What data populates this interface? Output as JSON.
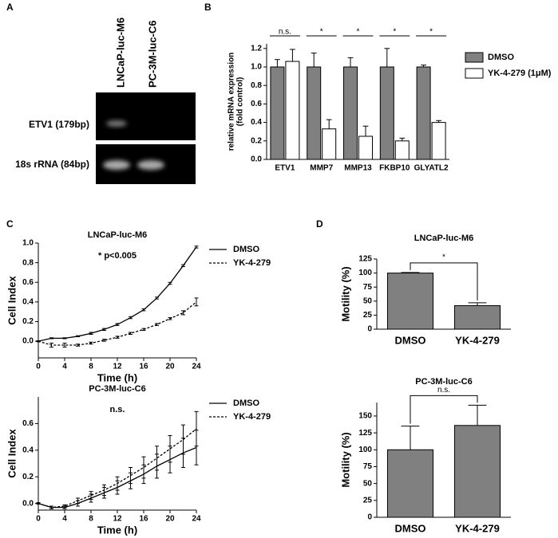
{
  "panel_labels": [
    "A",
    "B",
    "C",
    "D"
  ],
  "gel": {
    "lanes": [
      "LNCaP-luc-M6",
      "PC-3M-luc-C6"
    ],
    "rows": [
      "ETV1 (179bp)",
      "18s rRNA (84bp)"
    ]
  },
  "chart_data": [
    {
      "type": "bar",
      "ylabel": [
        "relative mRNA expression",
        "(fold control)"
      ],
      "categories": [
        "ETV1",
        "MMP7",
        "MMP13",
        "FKBP10",
        "GLYATL2"
      ],
      "significance": [
        "n.s.",
        "*",
        "*",
        "*",
        "*"
      ],
      "series": [
        {
          "name": "DMSO",
          "color": "#808080",
          "values": [
            1.0,
            1.0,
            1.0,
            1.0,
            1.0
          ],
          "errors": [
            0.08,
            0.15,
            0.1,
            0.2,
            0.02
          ]
        },
        {
          "name": "YK-4-279 (1μM)",
          "color": "#ffffff",
          "values": [
            1.06,
            0.33,
            0.25,
            0.2,
            0.4
          ],
          "errors": [
            0.13,
            0.1,
            0.11,
            0.03,
            0.02
          ]
        }
      ],
      "ylim": [
        0,
        1.25
      ],
      "yticks": [
        {
          "value": 0,
          "label": "0.0"
        },
        0.2,
        0.4,
        0.6,
        0.8,
        {
          "value": 1,
          "label": "1.0"
        },
        1.2
      ]
    },
    {
      "type": "line",
      "title": "LNCaP-luc-M6",
      "annotation": "* p<0.005",
      "xlabel": "Time (h)",
      "ylabel": "Cell Index",
      "x": [
        0,
        2,
        4,
        6,
        8,
        10,
        12,
        14,
        16,
        18,
        20,
        22,
        24
      ],
      "series": [
        {
          "name": "DMSO",
          "color": "#000000",
          "line_style": "solid",
          "values": [
            0.0,
            0.03,
            0.03,
            0.05,
            0.08,
            0.12,
            0.17,
            0.24,
            0.32,
            0.44,
            0.59,
            0.77,
            0.96
          ],
          "errors": [
            0.005,
            0.005,
            0.005,
            0.005,
            0.01,
            0.01,
            0.01,
            0.01,
            0.01,
            0.01,
            0.01,
            0.01,
            0.01
          ]
        },
        {
          "name": "YK-4-279",
          "color": "#000000",
          "line_style": "dashed",
          "values": [
            0.0,
            -0.04,
            -0.04,
            -0.04,
            -0.02,
            0.01,
            0.04,
            0.08,
            0.12,
            0.17,
            0.23,
            0.29,
            0.4
          ],
          "errors": [
            0.005,
            0.02,
            0.02,
            0.01,
            0.01,
            0.01,
            0.01,
            0.01,
            0.01,
            0.01,
            0.01,
            0.02,
            0.04
          ]
        }
      ],
      "xlim": [
        0,
        24
      ],
      "xticks": [
        0,
        4,
        8,
        12,
        16,
        20,
        24
      ],
      "ylim": [
        -0.17,
        1.0
      ],
      "yticks": [
        {
          "value": 0,
          "label": "0.0"
        },
        0.2,
        0.4,
        0.6,
        0.8,
        {
          "value": 1,
          "label": "1.0"
        }
      ]
    },
    {
      "type": "line",
      "title": "PC-3M-luc-C6",
      "annotation": "n.s.",
      "xlabel": "Time (h)",
      "ylabel": "Cell Index",
      "x": [
        0,
        2,
        4,
        6,
        8,
        10,
        12,
        14,
        16,
        18,
        20,
        22,
        24
      ],
      "series": [
        {
          "name": "DMSO",
          "color": "#000000",
          "line_style": "solid",
          "values": [
            0.0,
            -0.03,
            -0.03,
            0.0,
            0.04,
            0.08,
            0.12,
            0.17,
            0.22,
            0.28,
            0.33,
            0.38,
            0.42
          ],
          "errors": [
            0.005,
            0.01,
            0.01,
            0.02,
            0.03,
            0.04,
            0.05,
            0.06,
            0.07,
            0.09,
            0.1,
            0.11,
            0.13
          ]
        },
        {
          "name": "YK-4-279",
          "color": "#000000",
          "line_style": "dashed",
          "values": [
            0.0,
            -0.03,
            -0.02,
            0.02,
            0.06,
            0.1,
            0.15,
            0.21,
            0.27,
            0.34,
            0.41,
            0.48,
            0.56
          ],
          "errors": [
            0.005,
            0.01,
            0.01,
            0.02,
            0.03,
            0.04,
            0.05,
            0.06,
            0.08,
            0.09,
            0.1,
            0.11,
            0.13
          ]
        }
      ],
      "xlim": [
        0,
        24
      ],
      "xticks": [
        0,
        4,
        8,
        12,
        16,
        20,
        24
      ],
      "ylim": [
        -0.05,
        0.8
      ],
      "yticks": [
        {
          "value": 0,
          "label": "0.0"
        },
        0.2,
        0.4,
        0.6
      ]
    },
    {
      "type": "bar",
      "title": "LNCaP-luc-M6",
      "ylabel": "Motility (%)",
      "significance": "*",
      "categories": [
        "DMSO",
        "YK-4-279"
      ],
      "color": "#808080",
      "values": [
        100,
        42
      ],
      "errors": [
        1,
        5
      ],
      "ylim": [
        0,
        125
      ],
      "yticks": [
        0,
        25,
        50,
        75,
        100,
        125
      ]
    },
    {
      "type": "bar",
      "title": "PC-3M-luc-C6",
      "ylabel": "Motility (%)",
      "significance": "n.s.",
      "categories": [
        "DMSO",
        "YK-4-279"
      ],
      "color": "#808080",
      "values": [
        100,
        136
      ],
      "errors": [
        35,
        30
      ],
      "ylim": [
        0,
        170
      ],
      "yticks": [
        0,
        25,
        50,
        75,
        100,
        125,
        150
      ]
    }
  ]
}
